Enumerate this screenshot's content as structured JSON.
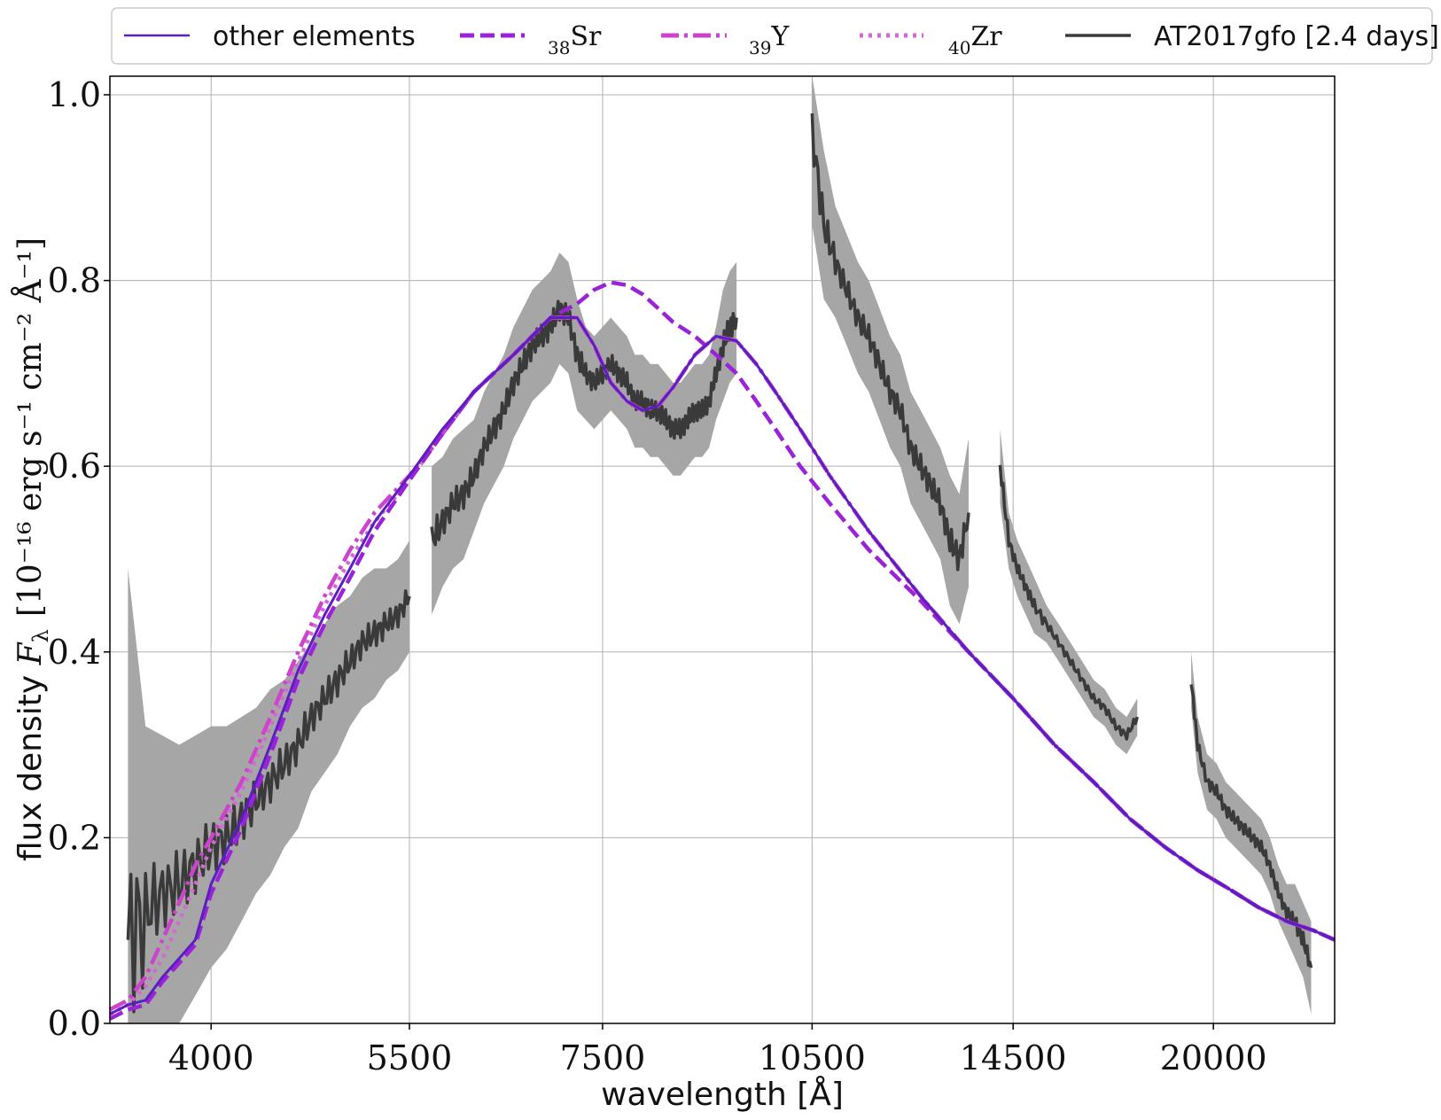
{
  "chart_data": {
    "type": "line",
    "x_scale": "log",
    "xlabel": "wavelength [Å]",
    "ylabel_text": "flux density ",
    "ylabel_symbol": "F",
    "ylabel_symbol_sub": "λ",
    "ylabel_unit": "[10⁻¹⁶ erg s⁻¹ cm⁻² Å⁻¹]",
    "xlim": [
      3400,
      24300
    ],
    "ylim": [
      0.0,
      1.02
    ],
    "x_ticks": [
      4000,
      5500,
      7500,
      10500,
      14500,
      20000
    ],
    "x_tick_labels": [
      "4000",
      "5500",
      "7500",
      "10500",
      "14500",
      "20000"
    ],
    "y_ticks": [
      0.0,
      0.2,
      0.4,
      0.6,
      0.8,
      1.0
    ],
    "y_tick_labels": [
      "0.0",
      "0.2",
      "0.4",
      "0.6",
      "0.8",
      "1.0"
    ],
    "grid": true,
    "legend_position": "top-outside",
    "series": [
      {
        "name": "other elements",
        "style": "solid",
        "color": "#5b1fc0",
        "x": [
          3400,
          3500,
          3600,
          3700,
          3800,
          3900,
          4000,
          4200,
          4400,
          4600,
          4800,
          5000,
          5200,
          5500,
          5800,
          6100,
          6500,
          6900,
          7200,
          7400,
          7600,
          7800,
          8000,
          8200,
          8400,
          8700,
          9000,
          9300,
          9600,
          9900,
          10300,
          10800,
          11500,
          12500,
          13500,
          14500,
          15500,
          16500,
          17500,
          18500,
          19500,
          20500,
          21500,
          22500,
          23500,
          24300
        ],
        "y": [
          0.01,
          0.02,
          0.025,
          0.05,
          0.07,
          0.09,
          0.15,
          0.22,
          0.3,
          0.38,
          0.44,
          0.49,
          0.54,
          0.59,
          0.64,
          0.68,
          0.72,
          0.76,
          0.76,
          0.73,
          0.69,
          0.67,
          0.66,
          0.665,
          0.685,
          0.72,
          0.74,
          0.735,
          0.71,
          0.68,
          0.64,
          0.59,
          0.53,
          0.46,
          0.4,
          0.35,
          0.3,
          0.26,
          0.22,
          0.19,
          0.165,
          0.145,
          0.125,
          0.11,
          0.1,
          0.09
        ]
      },
      {
        "name": "38Sr",
        "label_sub": "38",
        "label_main": "Sr",
        "style": "dashed",
        "color": "#9a22d8",
        "x": [
          3400,
          3500,
          3600,
          3700,
          3800,
          3900,
          4000,
          4200,
          4400,
          4600,
          4800,
          5000,
          5200,
          5500,
          5800,
          6100,
          6500,
          6900,
          7200,
          7400,
          7600,
          7800,
          8000,
          8200,
          8400,
          8700,
          9000,
          9300,
          9600,
          9900,
          10300,
          10800,
          11500,
          12500,
          13500,
          14500,
          15500,
          16500,
          17500,
          18500,
          19500,
          20500,
          21500,
          22500,
          23500,
          24300
        ],
        "y": [
          0.005,
          0.015,
          0.02,
          0.045,
          0.065,
          0.085,
          0.14,
          0.21,
          0.29,
          0.37,
          0.43,
          0.48,
          0.53,
          0.585,
          0.635,
          0.68,
          0.72,
          0.76,
          0.775,
          0.79,
          0.798,
          0.795,
          0.785,
          0.77,
          0.755,
          0.74,
          0.72,
          0.7,
          0.67,
          0.64,
          0.6,
          0.56,
          0.51,
          0.455,
          0.4,
          0.35,
          0.3,
          0.26,
          0.22,
          0.19,
          0.165,
          0.145,
          0.125,
          0.11,
          0.1,
          0.09
        ]
      },
      {
        "name": "39Y",
        "label_sub": "39",
        "label_main": "Y",
        "style": "dashdot",
        "color": "#cc44cc",
        "x": [
          3400,
          3500,
          3600,
          3700,
          3800,
          3900,
          4000,
          4200,
          4400,
          4600,
          4800,
          5000,
          5200,
          5500,
          5800,
          6100,
          6500,
          6900,
          7200,
          7400,
          7600,
          7800,
          8000,
          8200,
          8400,
          8700,
          9000,
          9300,
          9600,
          9900,
          10300,
          10800,
          11500,
          12500,
          13500,
          14500,
          15500,
          16500,
          17500,
          18500,
          19500,
          20500,
          21500,
          22500,
          23500,
          24300
        ],
        "y": [
          0.015,
          0.025,
          0.05,
          0.09,
          0.13,
          0.17,
          0.2,
          0.26,
          0.33,
          0.4,
          0.46,
          0.51,
          0.55,
          0.59,
          0.635,
          0.68,
          0.72,
          0.76,
          0.76,
          0.73,
          0.69,
          0.67,
          0.66,
          0.665,
          0.685,
          0.72,
          0.74,
          0.735,
          0.71,
          0.68,
          0.64,
          0.59,
          0.53,
          0.46,
          0.4,
          0.35,
          0.3,
          0.26,
          0.22,
          0.19,
          0.165,
          0.145,
          0.125,
          0.11,
          0.1,
          0.09
        ]
      },
      {
        "name": "40Zr",
        "label_sub": "40",
        "label_main": "Zr",
        "style": "dotted",
        "color": "#d36ad3",
        "x": [
          3400,
          3500,
          3600,
          3700,
          3800,
          3900,
          4000,
          4200,
          4400,
          4600,
          4800,
          5000,
          5200,
          5500,
          5800,
          6100,
          6500,
          6900,
          7200,
          7400,
          7600,
          7800,
          8000,
          8200,
          8400,
          8700,
          9000,
          9300,
          9600,
          9900,
          10300,
          10800,
          11500,
          12500,
          13500,
          14500,
          15500,
          16500,
          17500,
          18500,
          19500,
          20500,
          21500,
          22500,
          23500,
          24300
        ],
        "y": [
          0.01,
          0.02,
          0.04,
          0.07,
          0.11,
          0.15,
          0.19,
          0.25,
          0.32,
          0.39,
          0.45,
          0.5,
          0.54,
          0.585,
          0.635,
          0.68,
          0.72,
          0.76,
          0.76,
          0.73,
          0.69,
          0.67,
          0.66,
          0.665,
          0.685,
          0.72,
          0.74,
          0.735,
          0.71,
          0.68,
          0.64,
          0.59,
          0.53,
          0.46,
          0.4,
          0.35,
          0.3,
          0.26,
          0.22,
          0.19,
          0.165,
          0.145,
          0.125,
          0.11,
          0.1,
          0.09
        ]
      },
      {
        "name": "AT2017gfo [2.4 days]",
        "style": "solid-thick",
        "color": "#3a3a3a",
        "band_color": "#a6a6a6",
        "segments": [
          {
            "x": [
              3500,
              3600,
              3700,
              3800,
              3900,
              4000,
              4100,
              4200,
              4300,
              4400,
              4500,
              4600,
              4700,
              4800,
              4900,
              5000,
              5100,
              5200,
              5300,
              5400,
              5500
            ],
            "y": [
              0.09,
              0.12,
              0.14,
              0.15,
              0.17,
              0.19,
              0.2,
              0.22,
              0.24,
              0.26,
              0.28,
              0.3,
              0.33,
              0.35,
              0.37,
              0.39,
              0.41,
              0.42,
              0.43,
              0.44,
              0.46
            ],
            "err": [
              0.4,
              0.2,
              0.17,
              0.15,
              0.14,
              0.13,
              0.12,
              0.11,
              0.1,
              0.1,
              0.09,
              0.09,
              0.08,
              0.08,
              0.08,
              0.07,
              0.07,
              0.07,
              0.06,
              0.06,
              0.06
            ]
          },
          {
            "x": [
              5700,
              5800,
              5900,
              6000,
              6100,
              6200,
              6300,
              6400,
              6500,
              6600,
              6700,
              6800,
              6900,
              7000,
              7100,
              7200,
              7300,
              7400,
              7500,
              7600,
              7700,
              7800,
              7900,
              8000,
              8100,
              8200,
              8300,
              8400,
              8500,
              8600,
              8700,
              8800,
              8900,
              9000,
              9100,
              9200,
              9300
            ],
            "y": [
              0.52,
              0.54,
              0.56,
              0.57,
              0.59,
              0.62,
              0.64,
              0.66,
              0.69,
              0.71,
              0.73,
              0.74,
              0.75,
              0.77,
              0.76,
              0.72,
              0.7,
              0.69,
              0.7,
              0.71,
              0.7,
              0.69,
              0.67,
              0.67,
              0.66,
              0.66,
              0.65,
              0.64,
              0.64,
              0.65,
              0.66,
              0.66,
              0.67,
              0.7,
              0.73,
              0.75,
              0.76
            ],
            "err": [
              0.08,
              0.07,
              0.07,
              0.07,
              0.06,
              0.06,
              0.06,
              0.06,
              0.06,
              0.06,
              0.06,
              0.06,
              0.06,
              0.06,
              0.06,
              0.06,
              0.05,
              0.05,
              0.05,
              0.05,
              0.05,
              0.05,
              0.05,
              0.05,
              0.05,
              0.05,
              0.05,
              0.05,
              0.05,
              0.05,
              0.05,
              0.05,
              0.05,
              0.05,
              0.06,
              0.06,
              0.06
            ]
          },
          {
            "x": [
              10500,
              10700,
              10900,
              11100,
              11300,
              11500,
              11700,
              11900,
              12100,
              12300,
              12500,
              12700,
              12900,
              13100,
              13300,
              13500
            ],
            "y": [
              0.96,
              0.86,
              0.82,
              0.79,
              0.76,
              0.74,
              0.71,
              0.68,
              0.66,
              0.62,
              0.6,
              0.58,
              0.56,
              0.52,
              0.5,
              0.55
            ],
            "err": [
              0.1,
              0.08,
              0.06,
              0.06,
              0.06,
              0.06,
              0.06,
              0.06,
              0.06,
              0.06,
              0.06,
              0.06,
              0.06,
              0.07,
              0.07,
              0.08
            ]
          },
          {
            "x": [
              14200,
              14400,
              14600,
              14800,
              15000,
              15300,
              15600,
              15900,
              16200,
              16500,
              16800,
              17100,
              17400,
              17700
            ],
            "y": [
              0.6,
              0.52,
              0.49,
              0.47,
              0.45,
              0.43,
              0.41,
              0.39,
              0.37,
              0.35,
              0.34,
              0.32,
              0.31,
              0.33
            ],
            "err": [
              0.04,
              0.03,
              0.03,
              0.03,
              0.03,
              0.02,
              0.02,
              0.02,
              0.02,
              0.02,
              0.02,
              0.02,
              0.02,
              0.02
            ]
          },
          {
            "x": [
              19300,
              19500,
              19800,
              20100,
              20400,
              20700,
              21000,
              21300,
              21600,
              21900,
              22200,
              22500,
              22800,
              23100,
              23400
            ],
            "y": [
              0.37,
              0.3,
              0.26,
              0.25,
              0.23,
              0.22,
              0.21,
              0.2,
              0.19,
              0.17,
              0.14,
              0.12,
              0.11,
              0.09,
              0.06
            ],
            "err": [
              0.03,
              0.03,
              0.03,
              0.03,
              0.03,
              0.03,
              0.03,
              0.03,
              0.03,
              0.03,
              0.03,
              0.03,
              0.04,
              0.04,
              0.05
            ]
          }
        ]
      }
    ]
  }
}
